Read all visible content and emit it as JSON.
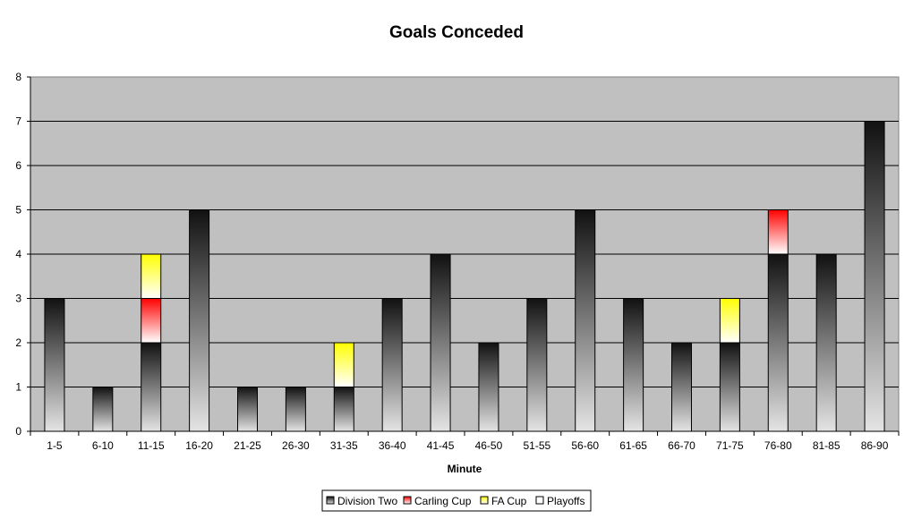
{
  "chart_data": {
    "type": "bar",
    "stacked": true,
    "title": "Goals Conceded",
    "xlabel": "Minute",
    "ylabel": "",
    "ylim": [
      0,
      8
    ],
    "yticks": [
      0,
      1,
      2,
      3,
      4,
      5,
      6,
      7,
      8
    ],
    "grid": true,
    "legend_position": "bottom",
    "categories": [
      "1-5",
      "6-10",
      "11-15",
      "16-20",
      "21-25",
      "26-30",
      "31-35",
      "36-40",
      "41-45",
      "46-50",
      "51-55",
      "56-60",
      "61-65",
      "66-70",
      "71-75",
      "76-80",
      "81-85",
      "86-90"
    ],
    "series": [
      {
        "name": "Division Two",
        "color": "#111111",
        "values": [
          3,
          1,
          2,
          5,
          1,
          1,
          1,
          3,
          4,
          2,
          3,
          5,
          3,
          2,
          2,
          4,
          4,
          7
        ]
      },
      {
        "name": "Carling Cup",
        "color": "#ff0000",
        "values": [
          0,
          0,
          1,
          0,
          0,
          0,
          0,
          0,
          0,
          0,
          0,
          0,
          0,
          0,
          0,
          1,
          0,
          0
        ]
      },
      {
        "name": "FA Cup",
        "color": "#ffff00",
        "values": [
          0,
          0,
          1,
          0,
          0,
          0,
          1,
          0,
          0,
          0,
          0,
          0,
          0,
          0,
          1,
          0,
          0,
          0
        ]
      },
      {
        "name": "Playoffs",
        "color": "#ffffff",
        "values": [
          0,
          0,
          0,
          0,
          0,
          0,
          0,
          0,
          0,
          0,
          0,
          0,
          0,
          0,
          0,
          0,
          0,
          0
        ]
      }
    ],
    "plot_background": "#c0c0c0"
  }
}
